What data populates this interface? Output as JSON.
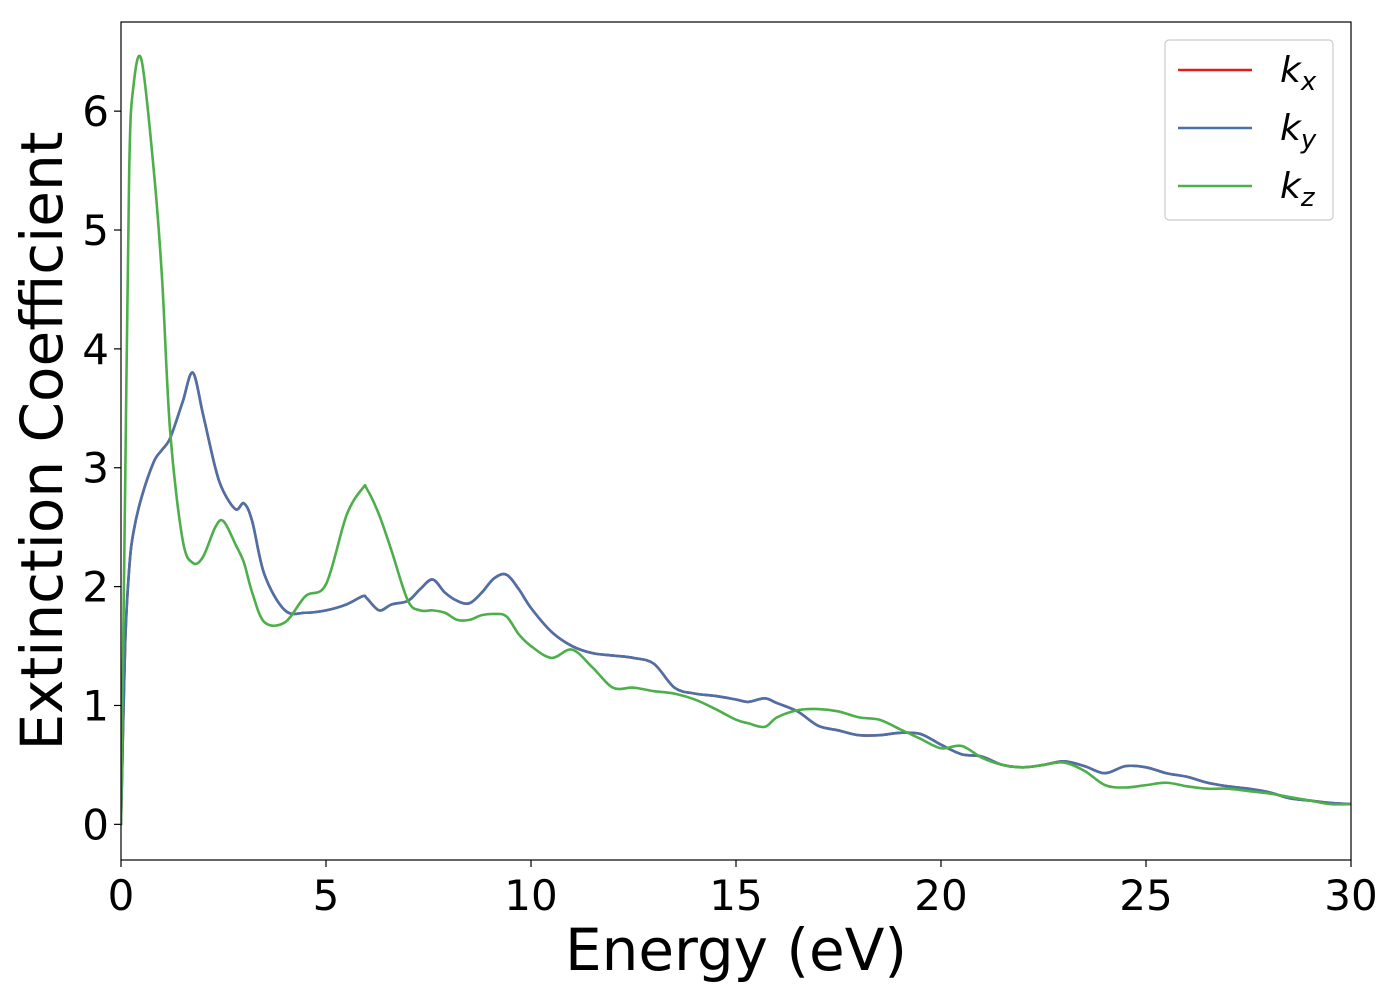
{
  "chart_data": {
    "type": "line",
    "xlabel": "Energy (eV)",
    "ylabel": "Extinction Coefficient",
    "xlim": [
      0,
      30
    ],
    "ylim": [
      -0.3,
      6.75
    ],
    "x_ticks": [
      0,
      5,
      10,
      15,
      20,
      25,
      30
    ],
    "y_ticks": [
      0,
      1,
      2,
      3,
      4,
      5,
      6
    ],
    "grid": false,
    "legend_position": "top-right",
    "colors": {
      "kx": "#e41a1c",
      "ky": "#4a72a8",
      "kz": "#4daf4a"
    },
    "legend": [
      {
        "key": "kx",
        "base": "k",
        "sub": "x"
      },
      {
        "key": "ky",
        "base": "k",
        "sub": "y"
      },
      {
        "key": "kz",
        "base": "k",
        "sub": "z"
      }
    ],
    "x": [
      0,
      0.1,
      0.2,
      0.3,
      0.5,
      0.8,
      1.0,
      1.2,
      1.5,
      1.75,
      2.0,
      2.3,
      2.5,
      2.8,
      3.0,
      3.2,
      3.5,
      4.0,
      4.5,
      5.0,
      5.5,
      5.9,
      6.0,
      6.3,
      6.6,
      7.0,
      7.3,
      7.6,
      7.9,
      8.2,
      8.5,
      8.8,
      9.1,
      9.4,
      9.7,
      10.0,
      10.5,
      11.0,
      11.5,
      12.0,
      12.5,
      13.0,
      13.5,
      14.0,
      14.5,
      15.0,
      15.3,
      15.7,
      16.0,
      16.5,
      17.0,
      17.5,
      18.0,
      18.5,
      19.0,
      19.5,
      20.0,
      20.5,
      21.0,
      21.5,
      22.0,
      22.5,
      23.0,
      23.5,
      24.0,
      24.5,
      25.0,
      25.5,
      26.0,
      26.5,
      27.0,
      27.5,
      28.0,
      28.5,
      29.0,
      29.5,
      30.0
    ],
    "series": [
      {
        "name": "k_x",
        "key": "kx",
        "values": [
          0,
          1.5,
          2.15,
          2.45,
          2.75,
          3.05,
          3.15,
          3.25,
          3.55,
          3.8,
          3.45,
          3.0,
          2.8,
          2.65,
          2.7,
          2.55,
          2.1,
          1.8,
          1.78,
          1.8,
          1.85,
          1.92,
          1.9,
          1.8,
          1.85,
          1.88,
          1.98,
          2.06,
          1.95,
          1.88,
          1.86,
          1.95,
          2.07,
          2.1,
          1.98,
          1.82,
          1.62,
          1.5,
          1.44,
          1.42,
          1.4,
          1.35,
          1.15,
          1.1,
          1.08,
          1.05,
          1.03,
          1.06,
          1.02,
          0.95,
          0.83,
          0.79,
          0.75,
          0.75,
          0.77,
          0.76,
          0.67,
          0.59,
          0.57,
          0.5,
          0.48,
          0.5,
          0.53,
          0.49,
          0.43,
          0.49,
          0.48,
          0.43,
          0.4,
          0.35,
          0.32,
          0.3,
          0.27,
          0.22,
          0.2,
          0.18,
          0.17
        ]
      },
      {
        "name": "k_y",
        "key": "ky",
        "values": [
          0,
          1.5,
          2.15,
          2.45,
          2.75,
          3.05,
          3.15,
          3.25,
          3.55,
          3.8,
          3.45,
          3.0,
          2.8,
          2.65,
          2.7,
          2.55,
          2.1,
          1.8,
          1.78,
          1.8,
          1.85,
          1.92,
          1.9,
          1.8,
          1.85,
          1.88,
          1.98,
          2.06,
          1.95,
          1.88,
          1.86,
          1.95,
          2.07,
          2.1,
          1.98,
          1.82,
          1.62,
          1.5,
          1.44,
          1.42,
          1.4,
          1.35,
          1.15,
          1.1,
          1.08,
          1.05,
          1.03,
          1.06,
          1.02,
          0.95,
          0.83,
          0.79,
          0.75,
          0.75,
          0.77,
          0.76,
          0.67,
          0.59,
          0.57,
          0.5,
          0.48,
          0.5,
          0.53,
          0.49,
          0.43,
          0.49,
          0.48,
          0.43,
          0.4,
          0.35,
          0.32,
          0.3,
          0.27,
          0.22,
          0.2,
          0.18,
          0.17
        ]
      },
      {
        "name": "k_z",
        "key": "kz",
        "values": [
          0,
          2.8,
          5.5,
          6.2,
          6.43,
          5.5,
          4.6,
          3.3,
          2.4,
          2.2,
          2.25,
          2.5,
          2.55,
          2.35,
          2.2,
          1.95,
          1.7,
          1.7,
          1.92,
          2.02,
          2.6,
          2.83,
          2.82,
          2.6,
          2.3,
          1.88,
          1.8,
          1.8,
          1.78,
          1.72,
          1.72,
          1.76,
          1.77,
          1.75,
          1.6,
          1.5,
          1.4,
          1.47,
          1.32,
          1.15,
          1.15,
          1.12,
          1.1,
          1.05,
          0.97,
          0.88,
          0.85,
          0.82,
          0.9,
          0.96,
          0.97,
          0.95,
          0.9,
          0.88,
          0.8,
          0.72,
          0.64,
          0.66,
          0.56,
          0.5,
          0.48,
          0.5,
          0.52,
          0.45,
          0.33,
          0.31,
          0.33,
          0.35,
          0.32,
          0.3,
          0.3,
          0.28,
          0.26,
          0.23,
          0.2,
          0.17,
          0.17
        ]
      }
    ]
  }
}
